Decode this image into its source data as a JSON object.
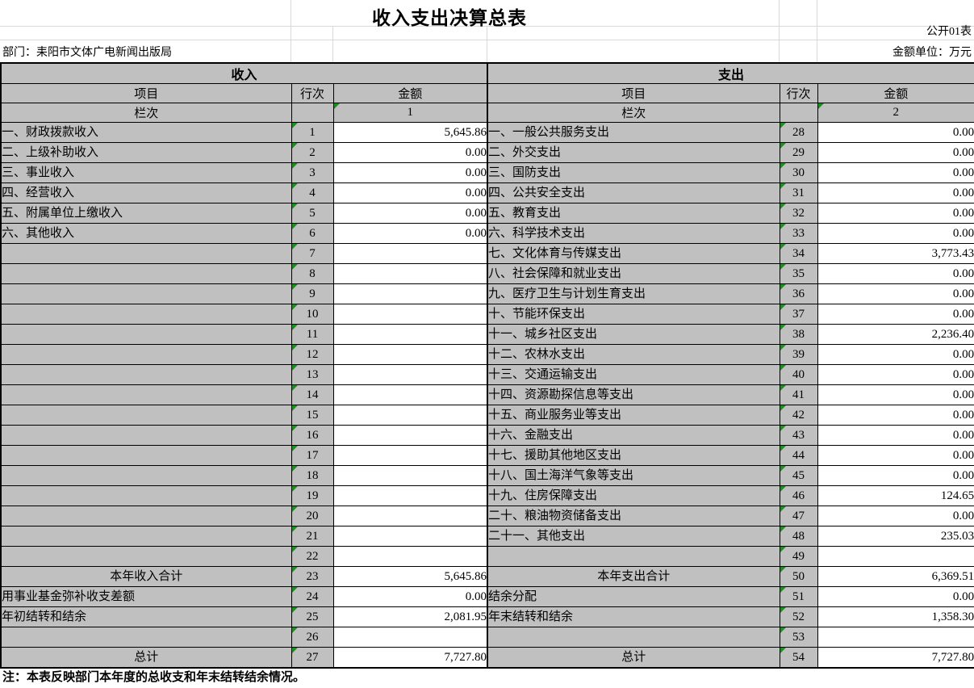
{
  "title": "收入支出决算总表",
  "meta": {
    "table_code": "公开01表",
    "department": "部门：耒阳市文体广电新闻出版局",
    "unit": "金额单位：万元"
  },
  "note": "注：本表反映部门本年度的总收支和年末结转结余情况。",
  "colors": {
    "header_fill": "#C0C0C0",
    "flag_triangle_green": "#17921B",
    "grid_light": "#D9D9D9",
    "table_border": "#000000"
  },
  "income": {
    "section_title": "收入",
    "col_item": "项目",
    "col_line": "行次",
    "col_amount": "金额",
    "lanci_label": "栏次",
    "lanci_value": "1",
    "rows": [
      {
        "item": "一、财政拨款收入",
        "line": "1",
        "amount": "5,645.86"
      },
      {
        "item": "二、上级补助收入",
        "line": "2",
        "amount": "0.00"
      },
      {
        "item": "三、事业收入",
        "line": "3",
        "amount": "0.00"
      },
      {
        "item": "四、经营收入",
        "line": "4",
        "amount": "0.00"
      },
      {
        "item": "五、附属单位上缴收入",
        "line": "5",
        "amount": "0.00"
      },
      {
        "item": "六、其他收入",
        "line": "6",
        "amount": "0.00"
      },
      {
        "item": "",
        "line": "7",
        "amount": ""
      },
      {
        "item": "",
        "line": "8",
        "amount": ""
      },
      {
        "item": "",
        "line": "9",
        "amount": ""
      },
      {
        "item": "",
        "line": "10",
        "amount": ""
      },
      {
        "item": "",
        "line": "11",
        "amount": ""
      },
      {
        "item": "",
        "line": "12",
        "amount": ""
      },
      {
        "item": "",
        "line": "13",
        "amount": ""
      },
      {
        "item": "",
        "line": "14",
        "amount": ""
      },
      {
        "item": "",
        "line": "15",
        "amount": ""
      },
      {
        "item": "",
        "line": "16",
        "amount": ""
      },
      {
        "item": "",
        "line": "17",
        "amount": ""
      },
      {
        "item": "",
        "line": "18",
        "amount": ""
      },
      {
        "item": "",
        "line": "19",
        "amount": ""
      },
      {
        "item": "",
        "line": "20",
        "amount": ""
      },
      {
        "item": "",
        "line": "21",
        "amount": ""
      },
      {
        "item": "",
        "line": "22",
        "amount": ""
      },
      {
        "item": "本年收入合计",
        "line": "23",
        "amount": "5,645.86",
        "center": true
      },
      {
        "item": "用事业基金弥补收支差额",
        "line": "24",
        "amount": "0.00"
      },
      {
        "item": "年初结转和结余",
        "line": "25",
        "amount": "2,081.95"
      },
      {
        "item": "",
        "line": "26",
        "amount": ""
      },
      {
        "item": "总计",
        "line": "27",
        "amount": "7,727.80",
        "center": true
      }
    ]
  },
  "expenditure": {
    "section_title": "支出",
    "col_item": "项目",
    "col_line": "行次",
    "col_amount": "金额",
    "lanci_label": "栏次",
    "lanci_value": "2",
    "rows": [
      {
        "item": "一、一般公共服务支出",
        "line": "28",
        "amount": "0.00"
      },
      {
        "item": "二、外交支出",
        "line": "29",
        "amount": "0.00"
      },
      {
        "item": "三、国防支出",
        "line": "30",
        "amount": "0.00"
      },
      {
        "item": "四、公共安全支出",
        "line": "31",
        "amount": "0.00"
      },
      {
        "item": "五、教育支出",
        "line": "32",
        "amount": "0.00"
      },
      {
        "item": "六、科学技术支出",
        "line": "33",
        "amount": "0.00"
      },
      {
        "item": "七、文化体育与传媒支出",
        "line": "34",
        "amount": "3,773.43"
      },
      {
        "item": "八、社会保障和就业支出",
        "line": "35",
        "amount": "0.00"
      },
      {
        "item": "九、医疗卫生与计划生育支出",
        "line": "36",
        "amount": "0.00"
      },
      {
        "item": "十、节能环保支出",
        "line": "37",
        "amount": "0.00"
      },
      {
        "item": "十一、城乡社区支出",
        "line": "38",
        "amount": "2,236.40"
      },
      {
        "item": "十二、农林水支出",
        "line": "39",
        "amount": "0.00"
      },
      {
        "item": "十三、交通运输支出",
        "line": "40",
        "amount": "0.00"
      },
      {
        "item": "十四、资源勘探信息等支出",
        "line": "41",
        "amount": "0.00"
      },
      {
        "item": "十五、商业服务业等支出",
        "line": "42",
        "amount": "0.00"
      },
      {
        "item": "十六、金融支出",
        "line": "43",
        "amount": "0.00"
      },
      {
        "item": "十七、援助其他地区支出",
        "line": "44",
        "amount": "0.00"
      },
      {
        "item": "十八、国土海洋气象等支出",
        "line": "45",
        "amount": "0.00"
      },
      {
        "item": "十九、住房保障支出",
        "line": "46",
        "amount": "124.65"
      },
      {
        "item": "二十、粮油物资储备支出",
        "line": "47",
        "amount": "0.00"
      },
      {
        "item": "二十一、其他支出",
        "line": "48",
        "amount": "235.03"
      },
      {
        "item": "",
        "line": "49",
        "amount": ""
      },
      {
        "item": "本年支出合计",
        "line": "50",
        "amount": "6,369.51",
        "center": true
      },
      {
        "item": "结余分配",
        "line": "51",
        "amount": "0.00"
      },
      {
        "item": "年末结转和结余",
        "line": "52",
        "amount": "1,358.30"
      },
      {
        "item": "",
        "line": "53",
        "amount": ""
      },
      {
        "item": "总计",
        "line": "54",
        "amount": "7,727.80",
        "center": true
      }
    ]
  }
}
